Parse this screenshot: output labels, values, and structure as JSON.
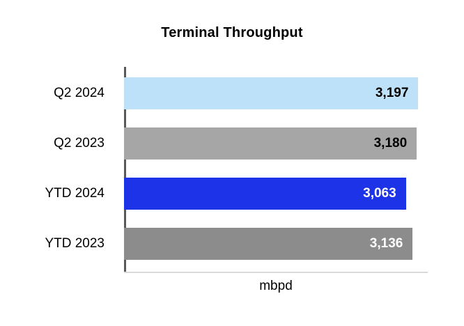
{
  "title": "Terminal Throughput",
  "chart_data": {
    "type": "bar",
    "orientation": "horizontal",
    "title": "Terminal Throughput",
    "xlabel": "mbpd",
    "ylabel": "",
    "xlim": [
      0,
      3300
    ],
    "grid": false,
    "legend": false,
    "categories": [
      "Q2 2024",
      "Q2 2023",
      "YTD 2024",
      "YTD 2023"
    ],
    "values": [
      3197,
      3180,
      3063,
      3136
    ],
    "value_labels": [
      "3,197",
      "3,180",
      "3,063",
      "3,136"
    ],
    "bar_colors": [
      "#bde1f8",
      "#a6a6a6",
      "#1d33e8",
      "#8c8c8c"
    ],
    "value_label_colors": [
      "#000000",
      "#000000",
      "#ffffff",
      "#ffffff"
    ],
    "axis_color": "#595959",
    "baseline_color": "#d9d9d9"
  }
}
